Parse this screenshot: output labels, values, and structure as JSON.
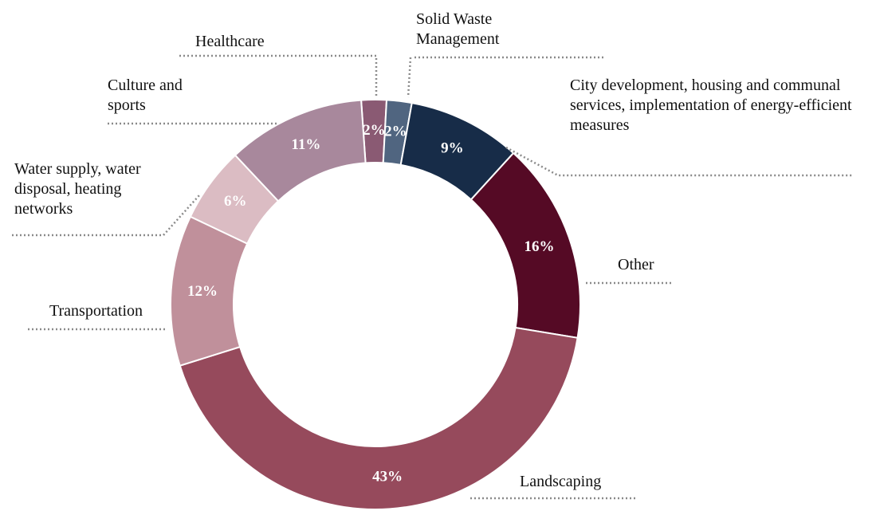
{
  "chart_data": {
    "type": "donut",
    "categories": [
      "Healthcare",
      "Solid Waste Management",
      "City development, housing and communal services, implementation of energy-efficient measures",
      "Other",
      "Landscaping",
      "Transportation",
      "Water supply, water disposal, heating networks",
      "Culture and sports"
    ],
    "values": [
      2,
      2,
      9,
      16,
      43,
      12,
      6,
      11
    ],
    "value_labels": [
      "2%",
      "2%",
      "9%",
      "16%",
      "43%",
      "12%",
      "6%",
      "11%"
    ],
    "colors": [
      "#8a5a73",
      "#506580",
      "#172c48",
      "#550a25",
      "#964a5c",
      "#c0909b",
      "#dbbcc3",
      "#a8889c"
    ]
  }
}
